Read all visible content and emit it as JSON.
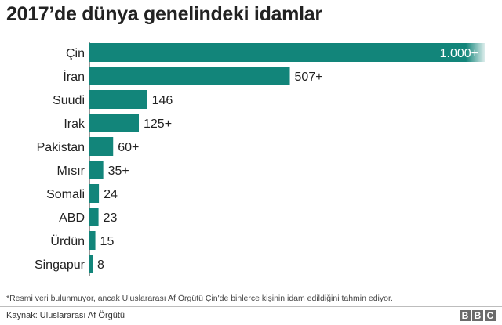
{
  "title": "2017’de dünya genelindeki idamlar",
  "chart_data": {
    "type": "bar",
    "orientation": "horizontal",
    "title": "2017’de dünya genelindeki idamlar",
    "categories": [
      "Çin",
      "İran",
      "Suudi",
      "Irak",
      "Pakistan",
      "Mısır",
      "Somali",
      "ABD",
      "Ürdün",
      "Singapur"
    ],
    "values": [
      1000,
      507,
      146,
      125,
      60,
      35,
      24,
      23,
      15,
      8
    ],
    "labels": [
      "1.000+",
      "507+",
      "146",
      "125+",
      "60+",
      "35+",
      "24",
      "23",
      "15",
      "8"
    ],
    "bar_color": "#12857a",
    "xlim": [
      0,
      1000
    ],
    "grid": false,
    "axis_line": true
  },
  "footnote": "*Resmi veri bulunmuyor, ancak Uluslararası Af Örgütü Çin'de binlerce kişinin idam edildiğini tahmin ediyor.",
  "source": "Kaynak: Uluslararası Af Örgütü",
  "logo": [
    "B",
    "B",
    "C"
  ]
}
